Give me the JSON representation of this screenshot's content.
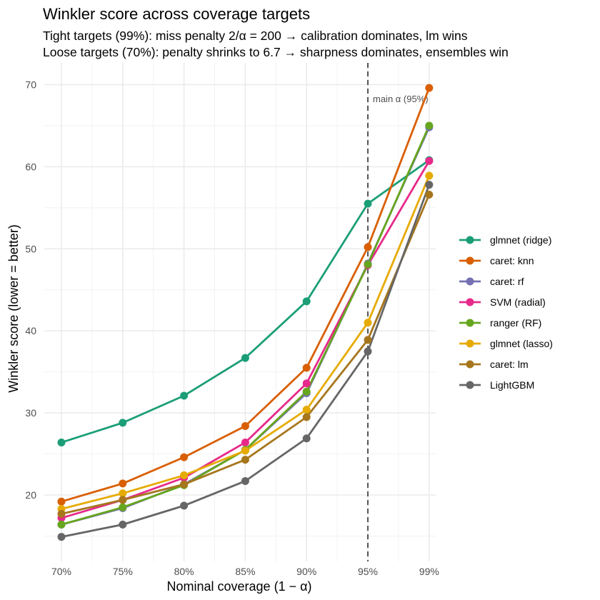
{
  "chart_data": {
    "type": "line",
    "title": "Winkler score across coverage targets",
    "subtitle_lines": [
      "Tight targets (99%): miss penalty 2/α = 200 → calibration dominates, lm wins",
      "Loose targets (70%): penalty shrinks to 6.7 → sharpness dominates, ensembles win"
    ],
    "xlabel": "Nominal coverage (1 − α)",
    "ylabel": "Winkler score (lower = better)",
    "categories": [
      "70%",
      "75%",
      "80%",
      "85%",
      "90%",
      "95%",
      "99%"
    ],
    "y_ticks": [
      20,
      30,
      40,
      50,
      60,
      70
    ],
    "ylim": [
      13.5,
      72.5
    ],
    "grid": true,
    "legend_position": "right",
    "vline": {
      "category": "95%",
      "label": "main α (95%)",
      "style": "dashed"
    },
    "series": [
      {
        "name": "glmnet (ridge)",
        "color": "#1b9e77",
        "values": [
          26.4,
          28.8,
          32.1,
          36.7,
          43.6,
          55.5,
          60.8
        ]
      },
      {
        "name": "caret: knn",
        "color": "#d95f02",
        "values": [
          19.2,
          21.4,
          24.6,
          28.4,
          35.5,
          50.2,
          69.6
        ]
      },
      {
        "name": "caret: rf",
        "color": "#7570b3",
        "values": [
          16.4,
          18.4,
          21.3,
          25.5,
          32.4,
          48.2,
          64.8
        ]
      },
      {
        "name": "SVM (radial)",
        "color": "#e7298a",
        "values": [
          17.2,
          19.4,
          22.1,
          26.4,
          33.6,
          48.0,
          60.7
        ]
      },
      {
        "name": "ranger (RF)",
        "color": "#66a61e",
        "values": [
          16.4,
          18.5,
          21.2,
          25.5,
          32.6,
          48.1,
          65.0
        ]
      },
      {
        "name": "glmnet (lasso)",
        "color": "#e6ab02",
        "values": [
          18.3,
          20.2,
          22.4,
          25.4,
          30.4,
          41.0,
          58.9
        ]
      },
      {
        "name": "caret: lm",
        "color": "#a6761d",
        "values": [
          17.7,
          19.4,
          21.3,
          24.3,
          29.5,
          38.9,
          56.6
        ]
      },
      {
        "name": "LightGBM",
        "color": "#666666",
        "values": [
          14.9,
          16.4,
          18.7,
          21.7,
          26.9,
          37.5,
          57.8
        ]
      }
    ]
  }
}
